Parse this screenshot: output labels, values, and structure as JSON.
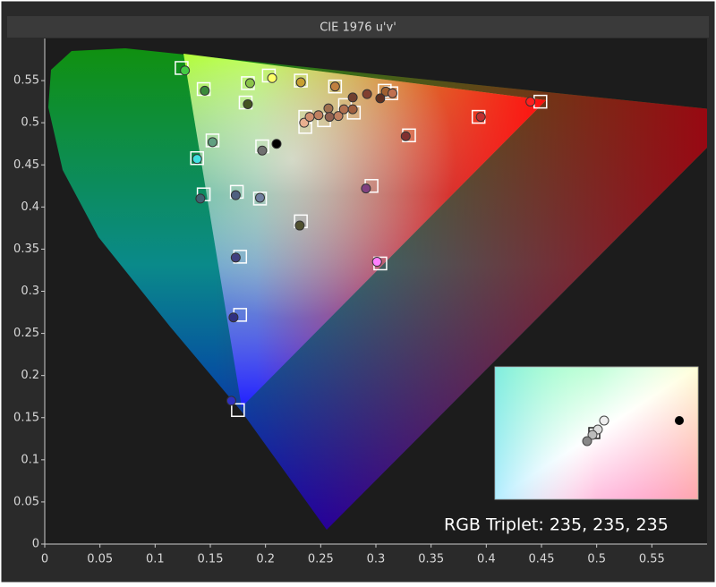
{
  "chart_data": {
    "type": "scatter",
    "title": "CIE 1976 u'v'",
    "annotation": "RGB Triplet: 235, 235, 235",
    "xlim": [
      0,
      0.6
    ],
    "ylim": [
      0,
      0.6
    ],
    "xticks": [
      0,
      0.05,
      0.1,
      0.15,
      0.2,
      0.25,
      0.3,
      0.35,
      0.4,
      0.45,
      0.5,
      0.55
    ],
    "yticks": [
      0,
      0.05,
      0.1,
      0.15,
      0.2,
      0.25,
      0.3,
      0.35,
      0.4,
      0.45,
      0.5,
      0.55
    ],
    "targets": {
      "color": "#ffffff",
      "x": [
        0.124,
        0.144,
        0.184,
        0.203,
        0.232,
        0.263,
        0.308,
        0.314,
        0.449,
        0.182,
        0.152,
        0.138,
        0.197,
        0.236,
        0.236,
        0.253,
        0.28,
        0.272,
        0.393,
        0.33,
        0.144,
        0.174,
        0.195,
        0.296,
        0.232,
        0.177,
        0.304,
        0.177,
        0.175
      ],
      "y": [
        0.565,
        0.54,
        0.547,
        0.556,
        0.55,
        0.543,
        0.538,
        0.535,
        0.525,
        0.524,
        0.479,
        0.458,
        0.472,
        0.507,
        0.495,
        0.503,
        0.512,
        0.521,
        0.507,
        0.485,
        0.415,
        0.418,
        0.41,
        0.425,
        0.383,
        0.341,
        0.333,
        0.272,
        0.159
      ]
    },
    "measured": {
      "x": [
        0.127,
        0.145,
        0.186,
        0.206,
        0.232,
        0.263,
        0.309,
        0.315,
        0.44,
        0.184,
        0.152,
        0.138,
        0.197,
        0.21,
        0.235,
        0.24,
        0.248,
        0.257,
        0.258,
        0.266,
        0.271,
        0.279,
        0.279,
        0.292,
        0.304,
        0.395,
        0.327,
        0.141,
        0.173,
        0.195,
        0.291,
        0.231,
        0.173,
        0.301,
        0.171,
        0.169
      ],
      "y": [
        0.562,
        0.538,
        0.547,
        0.553,
        0.548,
        0.543,
        0.537,
        0.535,
        0.525,
        0.522,
        0.477,
        0.457,
        0.467,
        0.475,
        0.5,
        0.507,
        0.509,
        0.517,
        0.507,
        0.508,
        0.516,
        0.516,
        0.53,
        0.534,
        0.529,
        0.507,
        0.484,
        0.41,
        0.414,
        0.411,
        0.422,
        0.378,
        0.34,
        0.335,
        0.269,
        0.17
      ],
      "colors": [
        "#44cc44",
        "#3a8a3a",
        "#8bc34a",
        "#ffff66",
        "#c8a030",
        "#c08040",
        "#a06030",
        "#c07050",
        "#ff2020",
        "#445522",
        "#60a080",
        "#40e0e0",
        "#707070",
        "#000000",
        "#e8b090",
        "#d09070",
        "#c08060",
        "#a07050",
        "#906050",
        "#c08060",
        "#b07050",
        "#a06040",
        "#704030",
        "#804030",
        "#603020",
        "#c03030",
        "#803030",
        "#406070",
        "#506080",
        "#7080a0",
        "#804080",
        "#505030",
        "#404080",
        "#ff80ff",
        "#303080",
        "#3030c0"
      ]
    }
  }
}
